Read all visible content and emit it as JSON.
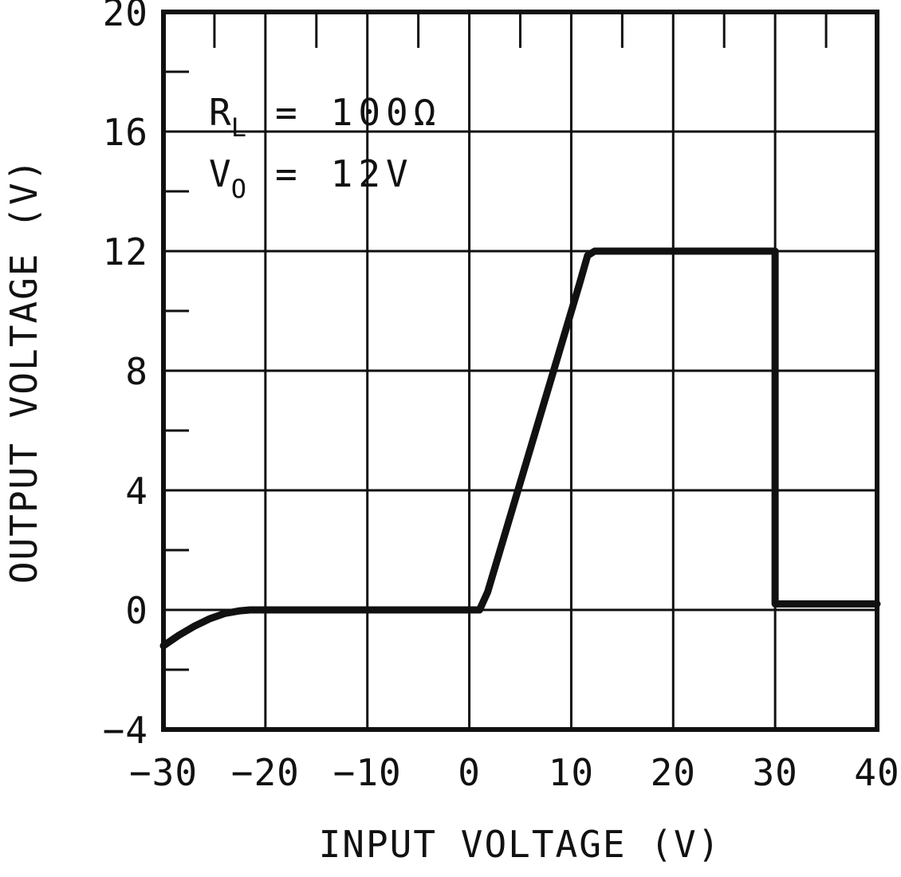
{
  "chart_data": {
    "type": "line",
    "title": "",
    "xlabel": "INPUT VOLTAGE (V)",
    "ylabel": "OUTPUT VOLTAGE (V)",
    "xlim": [
      -30,
      40
    ],
    "ylim": [
      -4,
      20
    ],
    "x_ticks": [
      -30,
      -20,
      -10,
      0,
      10,
      20,
      30,
      40
    ],
    "y_ticks": [
      -4,
      0,
      4,
      8,
      12,
      16,
      20
    ],
    "x_minor_ticks": [
      -25,
      -15,
      -5,
      5,
      15,
      25,
      35
    ],
    "y_minor_ticks": [
      -2,
      2,
      6,
      10,
      14,
      18
    ],
    "grid": true,
    "legend": "none",
    "annotation": {
      "line1": {
        "var": "R",
        "sub": "L",
        "eq": "=",
        "value": "100Ω"
      },
      "line2": {
        "var": "V",
        "sub": "O",
        "eq": "=",
        "value": "12V"
      }
    },
    "series": [
      {
        "name": "output-voltage-vs-input-voltage",
        "points": [
          [
            -30,
            -1.2
          ],
          [
            -28.5,
            -0.85
          ],
          [
            -27,
            -0.55
          ],
          [
            -25.5,
            -0.3
          ],
          [
            -24,
            -0.12
          ],
          [
            -22.5,
            -0.03
          ],
          [
            -21.5,
            0
          ],
          [
            1,
            0
          ],
          [
            1.8,
            0.6
          ],
          [
            10.8,
            10.9
          ],
          [
            11.6,
            11.85
          ],
          [
            12.3,
            12
          ],
          [
            30,
            12
          ],
          [
            30,
            0.2
          ],
          [
            40,
            0.2
          ]
        ]
      }
    ],
    "colors": {
      "line": "#111111",
      "grid": "#111111",
      "background": "#ffffff"
    }
  }
}
